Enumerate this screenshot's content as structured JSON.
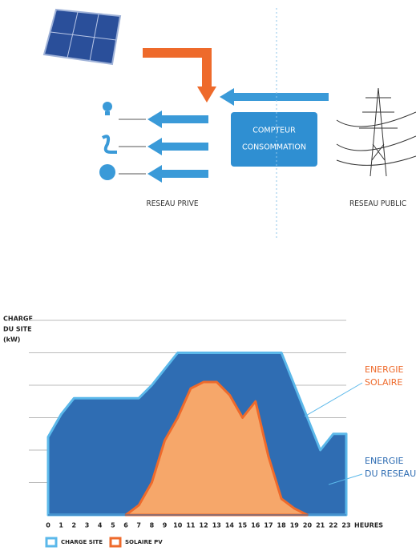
{
  "diagram": {
    "meter_label": [
      "COMPTEUR",
      "CONSOMMATION"
    ],
    "private_label": "RESEAU PRIVE",
    "public_label": "RESEAU PUBLIC"
  },
  "chart_data": {
    "type": "area",
    "y_label": [
      "CHARGE",
      "DU SITE",
      "(kW)"
    ],
    "x_label": "HEURES",
    "x": [
      0,
      1,
      2,
      3,
      4,
      5,
      6,
      7,
      8,
      9,
      10,
      11,
      12,
      13,
      14,
      15,
      16,
      17,
      18,
      19,
      20,
      21,
      22,
      23
    ],
    "xlim": [
      0,
      23
    ],
    "ylim": [
      0,
      6
    ],
    "ygrid": [
      1,
      2,
      3,
      4,
      5,
      6
    ],
    "series": [
      {
        "name": "CHARGE SITE",
        "color": "#2f6db3",
        "line_color": "#5bb8ea",
        "values": [
          2.4,
          3.1,
          3.6,
          3.6,
          3.6,
          3.6,
          3.6,
          3.6,
          4.0,
          4.5,
          5.0,
          5.0,
          5.0,
          5.0,
          5.0,
          5.0,
          5.0,
          5.0,
          5.0,
          4.0,
          3.0,
          2.0,
          2.5,
          2.5
        ]
      },
      {
        "name": "SOLAIRE PV",
        "color": "#f6a76a",
        "line_color": "#ee6a2b",
        "values": [
          null,
          null,
          null,
          null,
          null,
          null,
          0,
          0.3,
          1.0,
          2.3,
          3.0,
          3.9,
          4.1,
          4.1,
          3.7,
          3.0,
          3.5,
          1.8,
          0.5,
          0.2,
          0,
          null,
          null,
          null
        ]
      }
    ],
    "annotations": [
      {
        "lines": [
          "ENERGIE",
          "SOLAIRE"
        ],
        "color": "#ee6a2b"
      },
      {
        "lines": [
          "ENERGIE",
          "DU RESEAU"
        ],
        "color": "#2f6db3"
      }
    ]
  }
}
